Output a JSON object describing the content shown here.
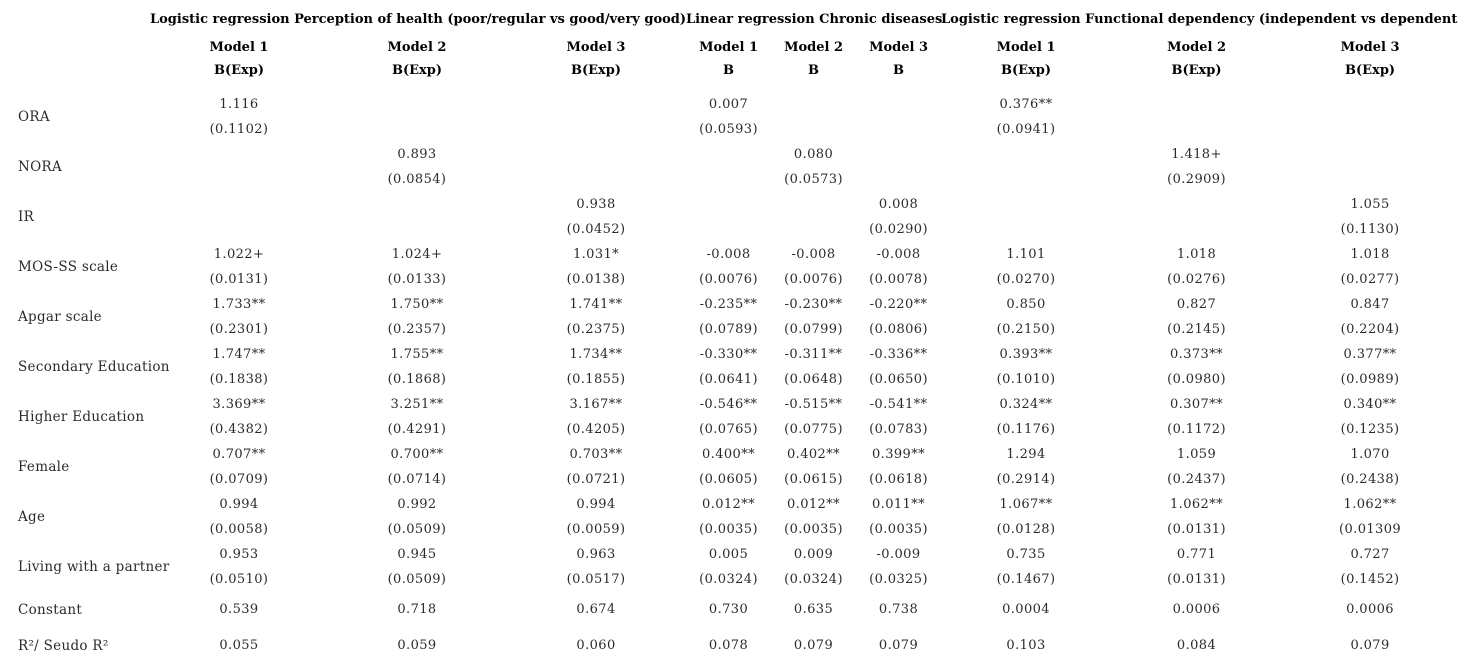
{
  "page": {
    "background_color": "#ffffff",
    "text_color": "#2b2b2b",
    "header_text_color": "#000000"
  },
  "table": {
    "groups": [
      {
        "title": "Logistic regression Perception of health (poor/regular vs good/very good)",
        "models": [
          "Model 1",
          "Model 2",
          "Model 3"
        ],
        "stat": "B(Exp)"
      },
      {
        "title": "Linear regression Chronic diseases",
        "models": [
          "Model 1",
          "Model 2",
          "Model 3"
        ],
        "stat": "B"
      },
      {
        "title": "Logistic regression Functional dependency (independent vs dependent)",
        "models": [
          "Model 1",
          "Model 2",
          "Model 3"
        ],
        "stat": "B(Exp)"
      }
    ],
    "rows": [
      {
        "label": "ORA",
        "cells": [
          {
            "v": "1.116",
            "se": "(0.1102)"
          },
          {
            "v": "",
            "se": ""
          },
          {
            "v": "",
            "se": ""
          },
          {
            "v": "0.007",
            "se": "(0.0593)"
          },
          {
            "v": "",
            "se": ""
          },
          {
            "v": "",
            "se": ""
          },
          {
            "v": "0.376**",
            "se": "(0.0941)"
          },
          {
            "v": "",
            "se": ""
          },
          {
            "v": "",
            "se": ""
          }
        ]
      },
      {
        "label": "NORA",
        "cells": [
          {
            "v": "",
            "se": ""
          },
          {
            "v": "0.893",
            "se": "(0.0854)"
          },
          {
            "v": "",
            "se": ""
          },
          {
            "v": "",
            "se": ""
          },
          {
            "v": "0.080",
            "se": "(0.0573)"
          },
          {
            "v": "",
            "se": ""
          },
          {
            "v": "",
            "se": ""
          },
          {
            "v": "1.418+",
            "se": "(0.2909)"
          },
          {
            "v": "",
            "se": ""
          }
        ]
      },
      {
        "label": "IR",
        "cells": [
          {
            "v": "",
            "se": ""
          },
          {
            "v": "",
            "se": ""
          },
          {
            "v": "0.938",
            "se": "(0.0452)"
          },
          {
            "v": "",
            "se": ""
          },
          {
            "v": "",
            "se": ""
          },
          {
            "v": "0.008",
            "se": "(0.0290)"
          },
          {
            "v": "",
            "se": ""
          },
          {
            "v": "",
            "se": ""
          },
          {
            "v": "1.055",
            "se": "(0.1130)"
          }
        ]
      },
      {
        "label": "MOS-SS scale",
        "cells": [
          {
            "v": "1.022+",
            "se": "(0.0131)"
          },
          {
            "v": "1.024+",
            "se": "(0.0133)"
          },
          {
            "v": "1.031*",
            "se": "(0.0138)"
          },
          {
            "v": "-0.008",
            "se": "(0.0076)"
          },
          {
            "v": "-0.008",
            "se": "(0.0076)"
          },
          {
            "v": "-0.008",
            "se": "(0.0078)"
          },
          {
            "v": "1.101",
            "se": "(0.0270)"
          },
          {
            "v": "1.018",
            "se": "(0.0276)"
          },
          {
            "v": "1.018",
            "se": "(0.0277)"
          }
        ]
      },
      {
        "label": "Apgar scale",
        "cells": [
          {
            "v": "1.733**",
            "se": "(0.2301)"
          },
          {
            "v": "1.750**",
            "se": "(0.2357)"
          },
          {
            "v": "1.741**",
            "se": "(0.2375)"
          },
          {
            "v": "-0.235**",
            "se": "(0.0789)"
          },
          {
            "v": "-0.230**",
            "se": "(0.0799)"
          },
          {
            "v": "-0.220**",
            "se": "(0.0806)"
          },
          {
            "v": "0.850",
            "se": "(0.2150)"
          },
          {
            "v": "0.827",
            "se": "(0.2145)"
          },
          {
            "v": "0.847",
            "se": "(0.2204)"
          }
        ]
      },
      {
        "label": "Secondary Education",
        "cells": [
          {
            "v": "1.747**",
            "se": "(0.1838)"
          },
          {
            "v": "1.755**",
            "se": "(0.1868)"
          },
          {
            "v": "1.734**",
            "se": "(0.1855)"
          },
          {
            "v": "-0.330**",
            "se": "(0.0641)"
          },
          {
            "v": "-0.311**",
            "se": "(0.0648)"
          },
          {
            "v": "-0.336**",
            "se": "(0.0650)"
          },
          {
            "v": "0.393**",
            "se": "(0.1010)"
          },
          {
            "v": "0.373**",
            "se": "(0.0980)"
          },
          {
            "v": "0.377**",
            "se": "(0.0989)"
          }
        ]
      },
      {
        "label": "Higher Education",
        "cells": [
          {
            "v": "3.369**",
            "se": "(0.4382)"
          },
          {
            "v": "3.251**",
            "se": "(0.4291)"
          },
          {
            "v": "3.167**",
            "se": "(0.4205)"
          },
          {
            "v": "-0.546**",
            "se": "(0.0765)"
          },
          {
            "v": "-0.515**",
            "se": "(0.0775)"
          },
          {
            "v": "-0.541**",
            "se": "(0.0783)"
          },
          {
            "v": "0.324**",
            "se": "(0.1176)"
          },
          {
            "v": "0.307**",
            "se": "(0.1172)"
          },
          {
            "v": "0.340**",
            "se": "(0.1235)"
          }
        ]
      },
      {
        "label": "Female",
        "cells": [
          {
            "v": "0.707**",
            "se": "(0.0709)"
          },
          {
            "v": "0.700**",
            "se": "(0.0714)"
          },
          {
            "v": "0.703**",
            "se": "(0.0721)"
          },
          {
            "v": "0.400**",
            "se": "(0.0605)"
          },
          {
            "v": "0.402**",
            "se": "(0.0615)"
          },
          {
            "v": "0.399**",
            "se": "(0.0618)"
          },
          {
            "v": "1.294",
            "se": "(0.2914)"
          },
          {
            "v": "1.059",
            "se": "(0.2437)"
          },
          {
            "v": "1.070",
            "se": "(0.2438)"
          }
        ]
      },
      {
        "label": "Age",
        "cells": [
          {
            "v": "0.994",
            "se": "(0.0058)"
          },
          {
            "v": "0.992",
            "se": "(0.0509)"
          },
          {
            "v": "0.994",
            "se": "(0.0059)"
          },
          {
            "v": "0.012**",
            "se": "(0.0035)"
          },
          {
            "v": "0.012**",
            "se": "(0.0035)"
          },
          {
            "v": "0.011**",
            "se": "(0.0035)"
          },
          {
            "v": "1.067**",
            "se": "(0.0128)"
          },
          {
            "v": "1.062**",
            "se": "(0.0131)"
          },
          {
            "v": "1.062**",
            "se": "(0.01309"
          }
        ]
      },
      {
        "label": "Living with a partner",
        "cells": [
          {
            "v": "0.953",
            "se": "(0.0510)"
          },
          {
            "v": "0.945",
            "se": "(0.0509)"
          },
          {
            "v": "0.963",
            "se": "(0.0517)"
          },
          {
            "v": "0.005",
            "se": "(0.0324)"
          },
          {
            "v": "0.009",
            "se": "(0.0324)"
          },
          {
            "v": "-0.009",
            "se": "(0.0325)"
          },
          {
            "v": "0.735",
            "se": "(0.1467)"
          },
          {
            "v": "0.771",
            "se": "(0.0131)"
          },
          {
            "v": "0.727",
            "se": "(0.1452)"
          }
        ]
      },
      {
        "label": "Constant",
        "single_line": true,
        "cells": [
          {
            "v": "0.539",
            "se": ""
          },
          {
            "v": "0.718",
            "se": ""
          },
          {
            "v": "0.674",
            "se": ""
          },
          {
            "v": "0.730",
            "se": ""
          },
          {
            "v": "0.635",
            "se": ""
          },
          {
            "v": "0.738",
            "se": ""
          },
          {
            "v": "0.0004",
            "se": ""
          },
          {
            "v": "0.0006",
            "se": ""
          },
          {
            "v": "0.0006",
            "se": ""
          }
        ]
      },
      {
        "label": "R²/ Seudo R²",
        "single_line": true,
        "cells": [
          {
            "v": "0.055",
            "se": ""
          },
          {
            "v": "0.059",
            "se": ""
          },
          {
            "v": "0.060",
            "se": ""
          },
          {
            "v": "0.078",
            "se": ""
          },
          {
            "v": "0.079",
            "se": ""
          },
          {
            "v": "0.079",
            "se": ""
          },
          {
            "v": "0.103",
            "se": ""
          },
          {
            "v": "0.084",
            "se": ""
          },
          {
            "v": "0.079",
            "se": ""
          }
        ]
      }
    ]
  }
}
